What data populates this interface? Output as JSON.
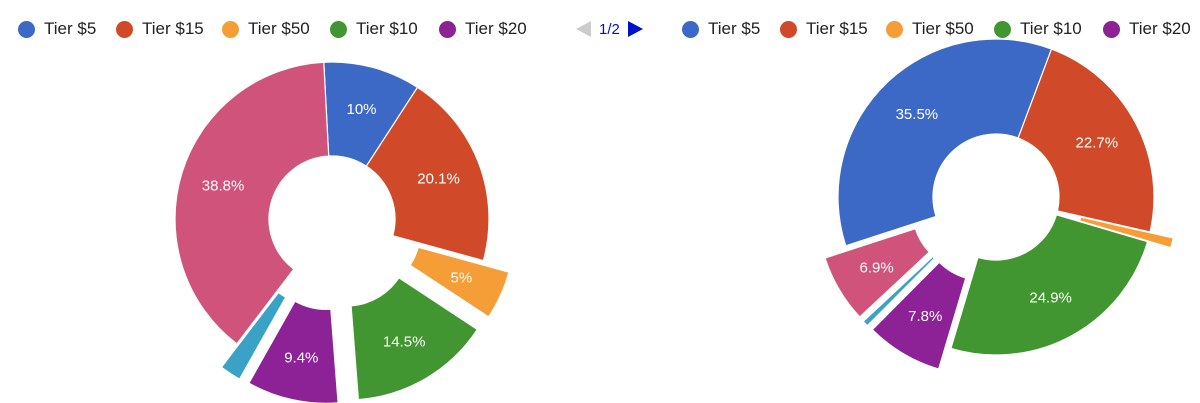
{
  "pager": {
    "text": "1/2"
  },
  "colors": {
    "Tier $5": "#3d69c6",
    "Tier $15": "#d04a29",
    "Tier $50": "#f59d36",
    "Tier $10": "#419631",
    "Tier $20": "#8d2196",
    "pink": "#cf537b",
    "teal": "#3aa2c7"
  },
  "chart_data": [
    {
      "type": "pie",
      "donut": true,
      "legend": [
        "Tier $5",
        "Tier $15",
        "Tier $50",
        "Tier $10",
        "Tier $20"
      ],
      "slices": [
        {
          "key": "Tier $5",
          "color": "#3d69c6",
          "value": 10.0,
          "label": "10%",
          "exploded": false
        },
        {
          "key": "Tier $15",
          "color": "#d04a29",
          "value": 20.1,
          "label": "20.1%",
          "exploded": false
        },
        {
          "key": "Tier $50",
          "color": "#f59d36",
          "value": 5.0,
          "label": "5%",
          "exploded": true
        },
        {
          "key": "Tier $10",
          "color": "#419631",
          "value": 14.5,
          "label": "14.5%",
          "exploded": true
        },
        {
          "key": "Tier $20",
          "color": "#8d2196",
          "value": 9.4,
          "label": "9.4%",
          "exploded": true
        },
        {
          "key": "teal",
          "color": "#3aa2c7",
          "value": 2.2,
          "label": "",
          "exploded": true
        },
        {
          "key": "pink",
          "color": "#cf537b",
          "value": 38.8,
          "label": "38.8%",
          "exploded": false
        }
      ]
    },
    {
      "type": "pie",
      "donut": true,
      "legend": [
        "Tier $5",
        "Tier $15",
        "Tier $50",
        "Tier $10",
        "Tier $20"
      ],
      "slices": [
        {
          "key": "Tier $5",
          "color": "#3d69c6",
          "value": 35.5,
          "label": "35.5%",
          "exploded": false
        },
        {
          "key": "Tier $15",
          "color": "#d04a29",
          "value": 22.7,
          "label": "22.7%",
          "exploded": false
        },
        {
          "key": "Tier $50",
          "color": "#f59d36",
          "value": 1.0,
          "label": "",
          "exploded": true
        },
        {
          "key": "Tier $10",
          "color": "#419631",
          "value": 24.9,
          "label": "24.9%",
          "exploded": false
        },
        {
          "key": "Tier $20",
          "color": "#8d2196",
          "value": 7.8,
          "label": "7.8%",
          "exploded": true
        },
        {
          "key": "teal",
          "color": "#3aa2c7",
          "value": 0.6,
          "label": "",
          "exploded": true
        },
        {
          "key": "pink",
          "color": "#cf537b",
          "value": 6.9,
          "label": "6.9%",
          "exploded": true
        }
      ]
    }
  ]
}
